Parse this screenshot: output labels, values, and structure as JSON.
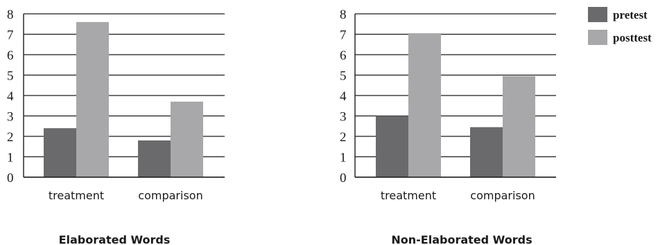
{
  "legend": {
    "placement": "top-right",
    "items": [
      {
        "label": "pretest",
        "color": "#6a6a6c"
      },
      {
        "label": "posttest",
        "color": "#a8a8aa"
      }
    ]
  },
  "chart_data": [
    {
      "type": "bar",
      "title": "Elaborated Words",
      "categories": [
        "treatment",
        "comparison"
      ],
      "series": [
        {
          "name": "pretest",
          "values": [
            2.4,
            1.8
          ]
        },
        {
          "name": "posttest",
          "values": [
            7.6,
            3.7
          ]
        }
      ],
      "ylim": [
        0,
        8
      ],
      "yticks": [
        "0",
        "1",
        "2",
        "3",
        "4",
        "5",
        "6",
        "7",
        "8"
      ],
      "grid": true
    },
    {
      "type": "bar",
      "title": "Non-Elaborated Words",
      "categories": [
        "treatment",
        "comparison"
      ],
      "series": [
        {
          "name": "pretest",
          "values": [
            3.0,
            2.45
          ]
        },
        {
          "name": "posttest",
          "values": [
            7.05,
            4.95
          ]
        }
      ],
      "ylim": [
        0,
        8
      ],
      "yticks": [
        "0",
        "1",
        "2",
        "3",
        "4",
        "5",
        "6",
        "7",
        "8"
      ],
      "grid": true
    }
  ]
}
